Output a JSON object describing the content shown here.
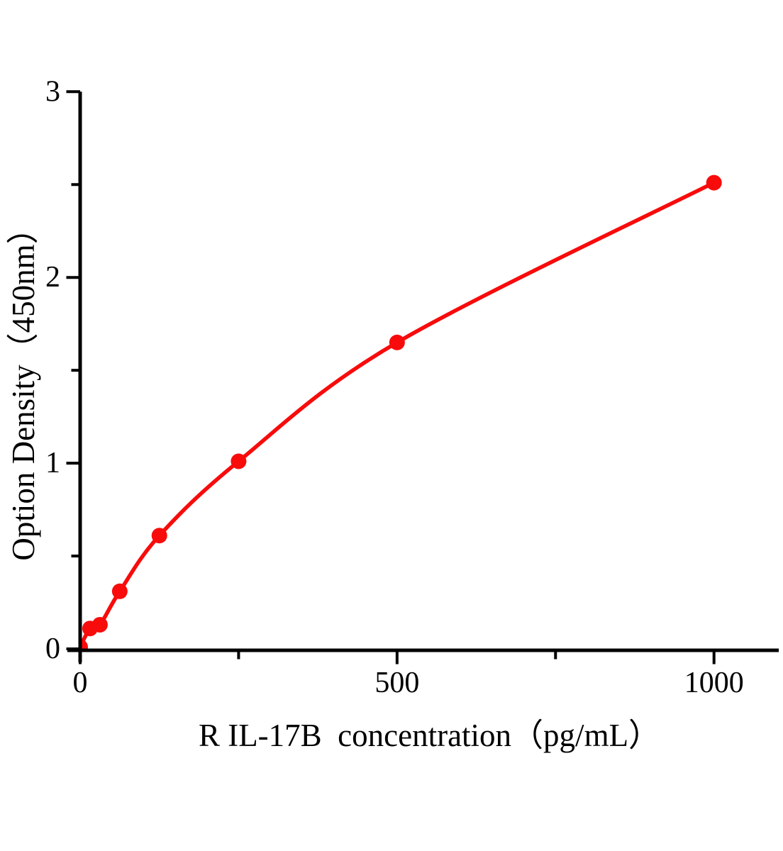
{
  "chart_data": {
    "type": "scatter",
    "subtype": "standard-curve-with-smooth-line",
    "title": "",
    "xlabel": "R IL-17B  concentration（pg/mL）",
    "ylabel": "Option Density（450nm）",
    "x": [
      0,
      15.6,
      31.25,
      62.5,
      125,
      250,
      500,
      1000
    ],
    "y": [
      0.01,
      0.11,
      0.13,
      0.31,
      0.61,
      1.01,
      1.65,
      2.51
    ],
    "xlim": [
      0,
      1100
    ],
    "ylim": [
      0,
      3
    ],
    "x_ticks_major": [
      0,
      500,
      1000
    ],
    "x_ticks_minor": [
      250,
      750
    ],
    "x_tick_labels": [
      "0",
      "500",
      "1000"
    ],
    "y_ticks_major": [
      0,
      1,
      2,
      3
    ],
    "y_ticks_minor": [
      0.5,
      1.5,
      2.5
    ],
    "y_tick_labels": [
      "0",
      "1",
      "2",
      "3"
    ],
    "grid": false,
    "legend": null,
    "line_color": "#f80b0b",
    "marker_color": "#f80b0b",
    "marker_shape": "circle",
    "axis_color": "#000000",
    "background_color": "#ffffff"
  }
}
